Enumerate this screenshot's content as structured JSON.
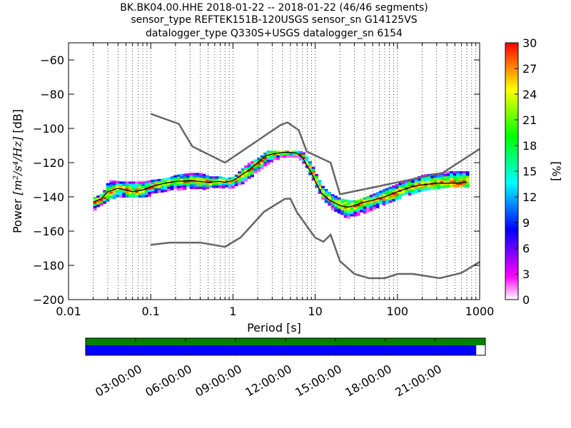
{
  "chart_data": {
    "type": "heatmap",
    "title_lines": [
      "BK.BK04.00.HHE   2018-01-22 -- 2018-01-22  (46/46 segments)",
      "sensor_type REFTEK151B-120USGS sensor_sn G14125VS",
      "datalogger_type Q330S+USGS datalogger_sn 6154"
    ],
    "xlabel": "Period [s]",
    "ylabel_prefix": "Power ",
    "ylabel_units": "[m²/s⁴/Hz]",
    "ylabel_suffix": " [dB]",
    "x_scale": "log",
    "xlim": [
      0.01,
      1000
    ],
    "ylim": [
      -200,
      -50
    ],
    "x_ticks": [
      {
        "value": 0.01,
        "label": "0.01"
      },
      {
        "value": 0.1,
        "label": "0.1"
      },
      {
        "value": 1,
        "label": "1"
      },
      {
        "value": 10,
        "label": "10"
      },
      {
        "value": 100,
        "label": "100"
      },
      {
        "value": 1000,
        "label": "1000"
      }
    ],
    "y_ticks": [
      {
        "value": -60,
        "label": "−60"
      },
      {
        "value": -80,
        "label": "−80"
      },
      {
        "value": -100,
        "label": "−100"
      },
      {
        "value": -120,
        "label": "−120"
      },
      {
        "value": -140,
        "label": "−140"
      },
      {
        "value": -160,
        "label": "−160"
      },
      {
        "value": -180,
        "label": "−180"
      },
      {
        "value": -200,
        "label": "−200"
      }
    ],
    "grid": "dotted vertical",
    "colorbar": {
      "label": "[%]",
      "min": 0,
      "max": 30,
      "ticks": [
        {
          "value": 0,
          "label": "0"
        },
        {
          "value": 3,
          "label": "3"
        },
        {
          "value": 6,
          "label": "6"
        },
        {
          "value": 9,
          "label": "9"
        },
        {
          "value": 12,
          "label": "12"
        },
        {
          "value": 15,
          "label": "15"
        },
        {
          "value": 18,
          "label": "18"
        },
        {
          "value": 21,
          "label": "21"
        },
        {
          "value": 24,
          "label": "24"
        },
        {
          "value": 27,
          "label": "27"
        },
        {
          "value": 30,
          "label": "30"
        }
      ]
    },
    "mode_curve": {
      "x": [
        0.02,
        0.025,
        0.03,
        0.04,
        0.05,
        0.06,
        0.08,
        0.1,
        0.15,
        0.2,
        0.3,
        0.4,
        0.5,
        0.7,
        0.8,
        1,
        1.2,
        1.5,
        2,
        2.5,
        3,
        4,
        5,
        6,
        7,
        8,
        9,
        10,
        12,
        15,
        20,
        25,
        30,
        40,
        50,
        70,
        100,
        150,
        200,
        300,
        400,
        500,
        700
      ],
      "y": [
        -143,
        -141,
        -137,
        -135,
        -136,
        -137,
        -136,
        -134,
        -132,
        -131,
        -130.5,
        -131,
        -131.5,
        -131,
        -131.5,
        -130.5,
        -128,
        -125,
        -120,
        -116,
        -115,
        -114,
        -114,
        -114.5,
        -117,
        -122,
        -126,
        -131,
        -138,
        -142,
        -145,
        -146,
        -145,
        -143,
        -142,
        -140,
        -137,
        -134,
        -133,
        -132,
        -132,
        -132,
        -131.5
      ]
    },
    "psd_band": {
      "x": [
        0.02,
        0.025,
        0.03,
        0.04,
        0.05,
        0.06,
        0.08,
        0.1,
        0.15,
        0.2,
        0.3,
        0.4,
        0.5,
        0.7,
        0.8,
        1,
        1.2,
        1.5,
        2,
        2.5,
        3,
        4,
        5,
        6,
        7,
        8,
        9,
        10,
        12,
        15,
        20,
        25,
        30,
        40,
        50,
        70,
        100,
        150,
        200,
        300,
        400,
        500,
        700
      ],
      "lower": [
        -147,
        -144,
        -141,
        -139,
        -140,
        -140,
        -140,
        -138,
        -136,
        -135,
        -134,
        -135,
        -134,
        -134,
        -134,
        -134,
        -132,
        -129,
        -124,
        -121,
        -118,
        -116,
        -116,
        -116,
        -120,
        -125,
        -129,
        -134,
        -141,
        -146,
        -150,
        -152,
        -150,
        -148,
        -146,
        -143,
        -140,
        -137,
        -136,
        -135,
        -134,
        -134,
        -134
      ],
      "upper": [
        -140,
        -138,
        -130,
        -131,
        -131,
        -131,
        -131,
        -130,
        -129,
        -127,
        -126,
        -126,
        -128,
        -128,
        -129,
        -128,
        -124,
        -120,
        -117,
        -113,
        -113,
        -113,
        -113,
        -113,
        -114,
        -118,
        -122,
        -127,
        -134,
        -138,
        -141,
        -142,
        -142,
        -140,
        -138,
        -135,
        -132,
        -129,
        -127,
        -126,
        -125,
        -125,
        -125
      ]
    },
    "nhnm": {
      "x": [
        0.1,
        0.22,
        0.32,
        0.8,
        3.8,
        4.6,
        6.3,
        7.9,
        15.4,
        20,
        354.8,
        1000
      ],
      "y": [
        -91.5,
        -97.4,
        -110.5,
        -120,
        -98,
        -96.5,
        -101,
        -113.5,
        -120,
        -138.5,
        -126,
        -112
      ]
    },
    "nlnm": {
      "x": [
        0.1,
        0.17,
        0.4,
        0.8,
        1.24,
        2.4,
        4.3,
        5,
        6,
        10,
        12.6,
        15.4,
        20,
        30,
        45,
        70,
        101,
        154,
        328,
        600,
        1000
      ],
      "y": [
        -168,
        -166.7,
        -166.7,
        -169.2,
        -163.7,
        -148.6,
        -141.1,
        -141.1,
        -149,
        -163.8,
        -166.2,
        -162.1,
        -177.5,
        -185,
        -187.5,
        -187.5,
        -185,
        -185,
        -187.5,
        -184.4,
        -178
      ]
    },
    "time_coverage": {
      "tick_labels": [
        "03:00:00",
        "06:00:00",
        "09:00:00",
        "12:00:00",
        "15:00:00",
        "18:00:00",
        "21:00:00"
      ],
      "tick_hours": [
        3,
        6,
        9,
        12,
        15,
        18,
        21
      ],
      "range_hours": [
        0,
        24
      ],
      "data_coverage_hours": [
        0,
        24
      ],
      "data_bar_color": "#0000ff",
      "data_end_hours": 23.45,
      "processed_bar_color": "#008000",
      "processed_end_hours": 24
    },
    "colors": {
      "mode_line": "#000000",
      "noise_models": "#666666",
      "colormap": [
        "#ffffff",
        "#ff00ff",
        "#7f00ff",
        "#0000ff",
        "#0080ff",
        "#00ffff",
        "#00ff80",
        "#00ff00",
        "#80ff00",
        "#ffff00",
        "#ff8000",
        "#ff0000"
      ]
    }
  }
}
